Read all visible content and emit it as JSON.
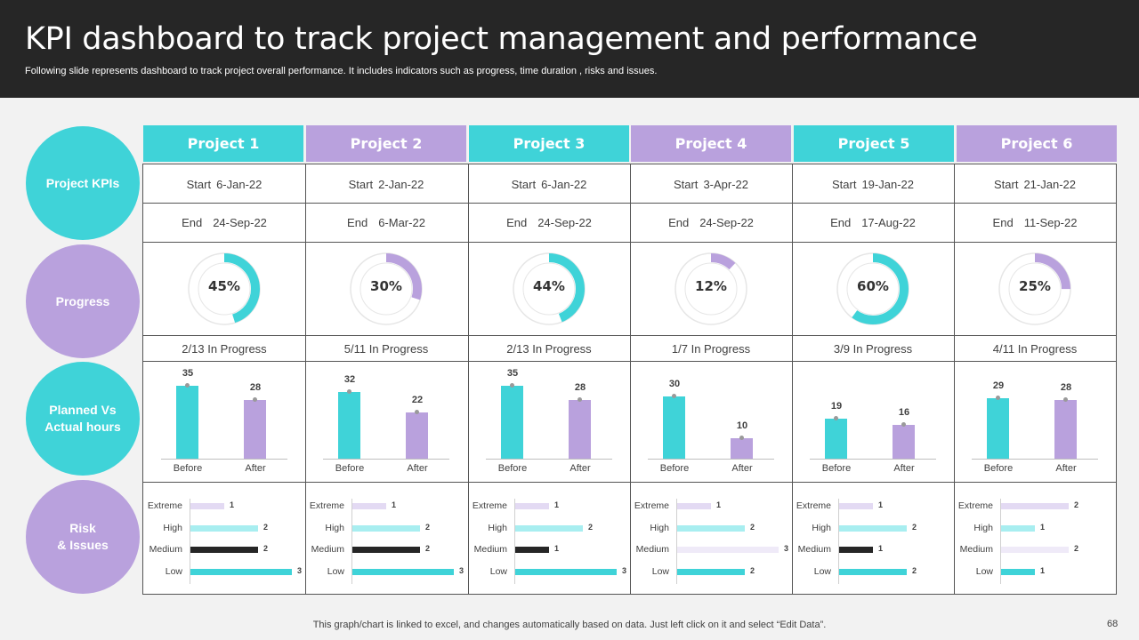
{
  "header": {
    "title": "KPI dashboard to track project management and performance",
    "subtitle": "Following slide represents dashboard to track project overall performance. It includes indicators such as progress, time duration , risks and issues."
  },
  "row_labels": {
    "kpis": "Project KPIs",
    "progress": "Progress",
    "hours": "Planned Vs\nActual hours",
    "risk": "Risk\n& Issues"
  },
  "colors": {
    "teal": "#3fd3d8",
    "lilac": "#b9a1dd",
    "dark": "#262626",
    "light_teal": "#a8eef0",
    "light_lilac": "#e3daf3",
    "very_light_lilac": "#efeaf8"
  },
  "labels": {
    "start": "Start",
    "end": "End",
    "before": "Before",
    "after": "After",
    "risk_levels": [
      "Extreme",
      "High",
      "Medium",
      "Low"
    ]
  },
  "projects": [
    {
      "name": "Project 1",
      "start": "6-Jan-22",
      "end": "24-Sep-22",
      "progress_label": "45%",
      "progress": 45,
      "status": "2/13 In Progress",
      "before": 35,
      "after": 28,
      "risks": [
        1,
        2,
        2,
        3
      ]
    },
    {
      "name": "Project 2",
      "start": "2-Jan-22",
      "end": "6-Mar-22",
      "progress_label": "30%",
      "progress": 30,
      "status": "5/11 In Progress",
      "before": 32,
      "after": 22,
      "risks": [
        1,
        2,
        2,
        3
      ]
    },
    {
      "name": "Project 3",
      "start": "6-Jan-22",
      "end": "24-Sep-22",
      "progress_label": "44%",
      "progress": 44,
      "status": "2/13 In Progress",
      "before": 35,
      "after": 28,
      "risks": [
        1,
        2,
        1,
        3
      ]
    },
    {
      "name": "Project 4",
      "start": "3-Apr-22",
      "end": "24-Sep-22",
      "progress_label": "12%",
      "progress": 12,
      "status": "1/7 In Progress",
      "before": 30,
      "after": 10,
      "risks": [
        1,
        2,
        3,
        2
      ]
    },
    {
      "name": "Project 5",
      "start": "19-Jan-22",
      "end": "17-Aug-22",
      "progress_label": "60%",
      "progress": 60,
      "status": "3/9 In Progress",
      "before": 19,
      "after": 16,
      "risks": [
        1,
        2,
        1,
        2
      ]
    },
    {
      "name": "Project 6",
      "start": "21-Jan-22",
      "end": "11-Sep-22",
      "progress_label": "25%",
      "progress": 25,
      "status": "4/11 In Progress",
      "before": 29,
      "after": 28,
      "risks": [
        2,
        1,
        2,
        1
      ]
    }
  ],
  "footer": "This graph/chart is linked to excel,  and changes automatically based on data. Just left click on it and select “Edit Data”.",
  "page_number": "68"
}
